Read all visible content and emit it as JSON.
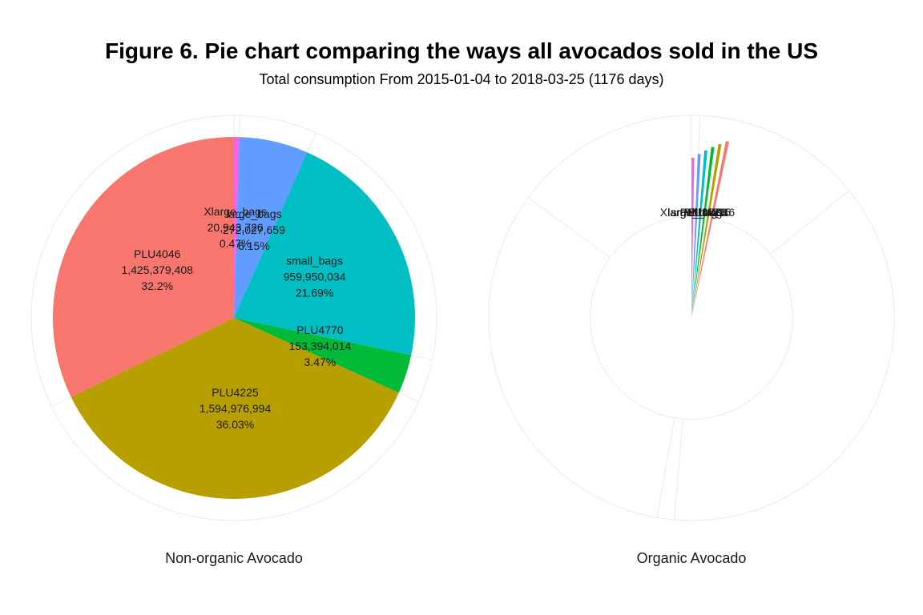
{
  "chart_data": {
    "type": "pie",
    "title": "Figure 6. Pie chart comparing the ways all avocados sold in the US",
    "subtitle": "Total consumption From 2015-01-04 to 2018-03-25 (1176 days)",
    "colors": {
      "PLU4046": "#F8766D",
      "PLU4225": "#B79F00",
      "PLU4770": "#00BA38",
      "small_bags": "#00BFC4",
      "large_bags": "#619CFF",
      "Xlarge_bags": "#F564E3"
    },
    "order": [
      "Xlarge_bags",
      "large_bags",
      "small_bags",
      "PLU4770",
      "PLU4225",
      "PLU4046"
    ],
    "facets": [
      {
        "label": "Non-organic Avocado",
        "slices": [
          {
            "name": "Xlarge_bags",
            "value_text": "20,943,726",
            "pct_text": "0.47%",
            "pct": 0.47
          },
          {
            "name": "large_bags",
            "value_text": "272,027,659",
            "pct_text": "6.15%",
            "pct": 6.15
          },
          {
            "name": "small_bags",
            "value_text": "959,950,034",
            "pct_text": "21.69%",
            "pct": 21.69
          },
          {
            "name": "PLU4770",
            "value_text": "153,394,014",
            "pct_text": "3.47%",
            "pct": 3.47
          },
          {
            "name": "PLU4225",
            "value_text": "1,594,976,994",
            "pct_text": "36.03%",
            "pct": 36.03
          },
          {
            "name": "PLU4046",
            "value_text": "1,425,379,408",
            "pct_text": "32.2%",
            "pct": 32.2
          }
        ]
      },
      {
        "label": "Organic Avocado",
        "slices": [
          {
            "name": "Xlarge_bags",
            "value_text": "",
            "pct_text": "",
            "pct": 0.01
          },
          {
            "name": "large_bags",
            "value_text": "",
            "pct_text": "",
            "pct": 0.2
          },
          {
            "name": "small_bags",
            "value_text": "",
            "pct_text": "",
            "pct": 0.55
          },
          {
            "name": "PLU4770",
            "value_text": "",
            "pct_text": "",
            "pct": 0.02
          },
          {
            "name": "PLU4225",
            "value_text": "",
            "pct_text": "",
            "pct": 0.48
          },
          {
            "name": "PLU4046",
            "value_text": "",
            "pct_text": "",
            "pct": 0.22
          }
        ]
      }
    ],
    "grid": true,
    "legend": "none"
  }
}
